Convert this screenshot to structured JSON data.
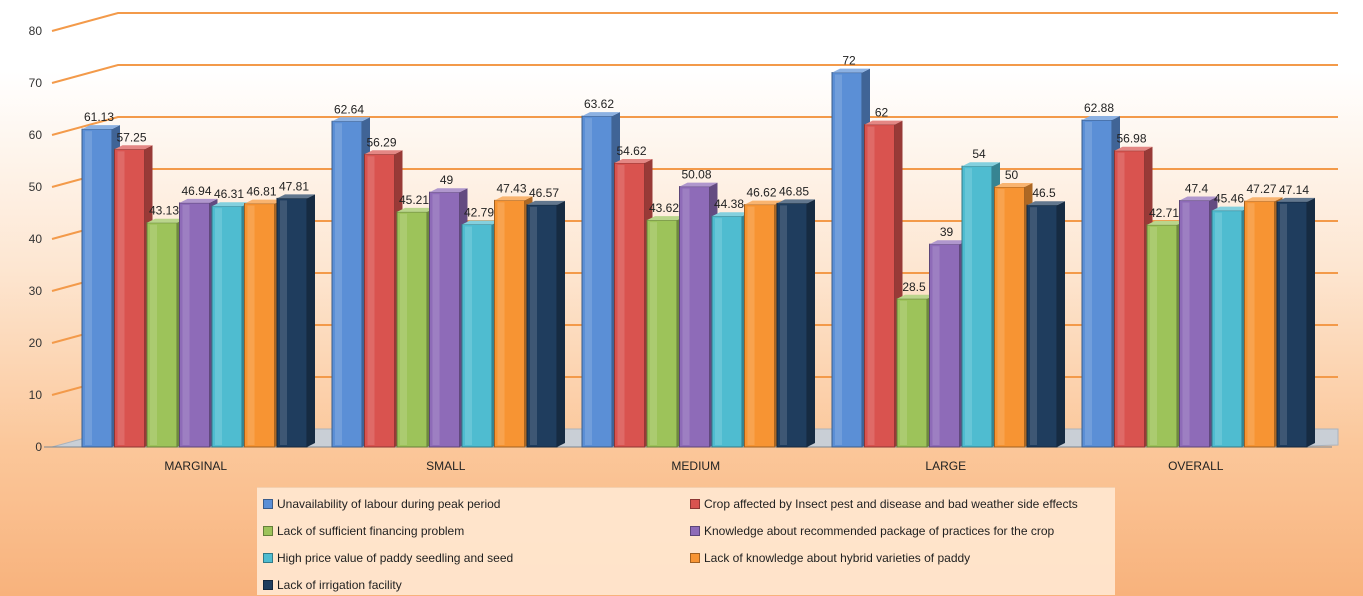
{
  "chart_data": {
    "type": "bar",
    "style": "3d-clustered-column",
    "categories": [
      "MARGINAL",
      "SMALL",
      "MEDIUM",
      "LARGE",
      "OVERALL"
    ],
    "series": [
      {
        "name": "Unavailability of labour during peak period",
        "color": "#5b8fd6",
        "values": [
          61.13,
          62.64,
          63.62,
          72,
          62.88
        ]
      },
      {
        "name": "Crop affected by Insect pest and disease and bad weather side effects",
        "color": "#d9534f",
        "values": [
          57.25,
          56.29,
          54.62,
          62,
          56.98
        ]
      },
      {
        "name": "Lack of sufficient financing problem",
        "color": "#9dc35a",
        "values": [
          43.13,
          45.21,
          43.62,
          28.5,
          42.71
        ]
      },
      {
        "name": "Knowledge about recommended package of practices for the crop",
        "color": "#8e6bb8",
        "values": [
          46.94,
          49,
          50.08,
          39,
          47.4
        ]
      },
      {
        "name": "High price value of paddy seedling and seed",
        "color": "#4fbcd0",
        "values": [
          46.31,
          42.79,
          44.38,
          54,
          45.46
        ]
      },
      {
        "name": "Lack of knowledge about hybrid varieties of paddy",
        "color": "#f79433",
        "values": [
          46.81,
          47.43,
          46.62,
          50,
          47.27
        ]
      },
      {
        "name": "Lack of irrigation facility",
        "color": "#1f3d5e",
        "values": [
          47.81,
          46.57,
          46.85,
          46.5,
          47.14
        ]
      }
    ],
    "value_labels": [
      [
        "61.13",
        "62.64",
        "63.62",
        "72",
        "62.88"
      ],
      [
        "57.25",
        "56.29",
        "54.62",
        "62",
        "56.98"
      ],
      [
        "43.13",
        "45.21",
        "43.62",
        "28.5",
        "42.71"
      ],
      [
        "46.94",
        "49",
        "50.08",
        "39",
        "47.4"
      ],
      [
        "46.31",
        "42.79",
        "44.38",
        "54",
        "45.46"
      ],
      [
        "46.81",
        "47.43",
        "46.62",
        "50",
        "47.27"
      ],
      [
        "47.81",
        "46.57",
        "46.85",
        "46.5",
        "47.14"
      ]
    ],
    "y_ticks": [
      "0",
      "10",
      "20",
      "30",
      "40",
      "50",
      "60",
      "70",
      "80"
    ],
    "ylim": [
      0,
      80
    ],
    "gridlines": true,
    "gridline_color": "#f39a4a",
    "legend_position": "bottom"
  }
}
